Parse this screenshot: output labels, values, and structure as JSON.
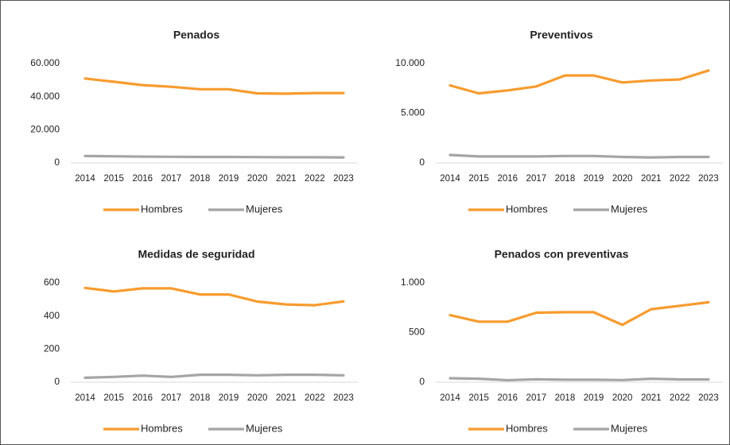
{
  "chart_data": [
    {
      "type": "line",
      "title": "Penados",
      "categories": [
        "2014",
        "2015",
        "2016",
        "2017",
        "2018",
        "2019",
        "2020",
        "2021",
        "2022",
        "2023"
      ],
      "series": [
        {
          "name": "Hombres",
          "color": "#f79b2e",
          "values": [
            51000,
            49000,
            47000,
            46000,
            44500,
            44500,
            42000,
            41800,
            42200,
            42200
          ]
        },
        {
          "name": "Mujeres",
          "color": "#a5a5a5",
          "values": [
            4200,
            4000,
            3800,
            3700,
            3600,
            3600,
            3500,
            3400,
            3400,
            3300
          ]
        }
      ],
      "ylim": [
        0,
        60000
      ],
      "yticks": [
        0,
        {
          "value": 20000,
          "label": "20.000"
        },
        {
          "value": 40000,
          "label": "40.000"
        },
        {
          "value": 60000,
          "label": "60.000"
        }
      ],
      "grid": false,
      "legend": "bottom"
    },
    {
      "type": "line",
      "title": "Preventivos",
      "categories": [
        "2014",
        "2015",
        "2016",
        "2017",
        "2018",
        "2019",
        "2020",
        "2021",
        "2022",
        "2023"
      ],
      "series": [
        {
          "name": "Hombres",
          "color": "#f79b2e",
          "values": [
            7800,
            7000,
            7300,
            7700,
            8800,
            8800,
            8100,
            8300,
            8400,
            9300
          ]
        },
        {
          "name": "Mujeres",
          "color": "#a5a5a5",
          "values": [
            800,
            650,
            650,
            650,
            700,
            700,
            600,
            550,
            600,
            600
          ]
        }
      ],
      "ylim": [
        0,
        10000
      ],
      "yticks": [
        0,
        {
          "value": 5000,
          "label": "5.000"
        },
        {
          "value": 10000,
          "label": "10.000"
        }
      ],
      "grid": false,
      "legend": "bottom"
    },
    {
      "type": "line",
      "title": "Medidas de seguridad",
      "categories": [
        "2014",
        "2015",
        "2016",
        "2017",
        "2018",
        "2019",
        "2020",
        "2021",
        "2022",
        "2023"
      ],
      "series": [
        {
          "name": "Hombres",
          "color": "#f79b2e",
          "values": [
            570,
            548,
            567,
            567,
            530,
            530,
            487,
            470,
            465,
            488
          ]
        },
        {
          "name": "Mujeres",
          "color": "#a5a5a5",
          "values": [
            27,
            32,
            40,
            32,
            45,
            45,
            42,
            45,
            45,
            42
          ]
        }
      ],
      "ylim": [
        0,
        600
      ],
      "yticks": [
        0,
        200,
        400,
        600
      ],
      "grid": false,
      "legend": "bottom"
    },
    {
      "type": "line",
      "title": "Penados con preventivas",
      "categories": [
        "2014",
        "2015",
        "2016",
        "2017",
        "2018",
        "2019",
        "2020",
        "2021",
        "2022",
        "2023"
      ],
      "series": [
        {
          "name": "Hombres",
          "color": "#f79b2e",
          "values": [
            675,
            610,
            610,
            700,
            705,
            705,
            578,
            735,
            770,
            805
          ]
        },
        {
          "name": "Mujeres",
          "color": "#a5a5a5",
          "values": [
            40,
            35,
            20,
            30,
            25,
            25,
            22,
            35,
            28,
            28
          ]
        }
      ],
      "ylim": [
        0,
        1000
      ],
      "yticks": [
        0,
        500,
        {
          "value": 1000,
          "label": "1.000"
        }
      ],
      "grid": false,
      "legend": "bottom"
    }
  ]
}
